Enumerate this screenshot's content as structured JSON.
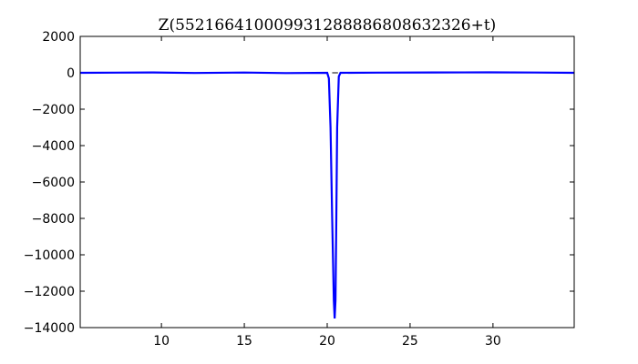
{
  "chart_data": {
    "type": "line",
    "title": "Z(552166410009931288886808632326+t)",
    "xlabel": "",
    "ylabel": "",
    "xlim": [
      5.1,
      34.9
    ],
    "ylim": [
      -14000,
      2000
    ],
    "xticks": [
      10,
      15,
      20,
      25,
      30
    ],
    "xtick_labels": [
      "10",
      "15",
      "20",
      "25",
      "30"
    ],
    "yticks": [
      2000,
      0,
      -2000,
      -4000,
      -6000,
      -8000,
      -10000,
      -12000,
      -14000
    ],
    "ytick_labels": [
      "2000",
      "0",
      "−2000",
      "−4000",
      "−6000",
      "−8000",
      "−10000",
      "−12000",
      "−14000"
    ],
    "grid": false,
    "series": [
      {
        "color": "#0000ff",
        "x": [
          5.1,
          9.5,
          12,
          15,
          17.5,
          20.0,
          20.1,
          20.2,
          20.3,
          20.4,
          20.45,
          20.5,
          20.55,
          20.6,
          20.7,
          20.8,
          23,
          26.5,
          29.8,
          32.5,
          34.9
        ],
        "y": [
          0,
          20,
          -10,
          15,
          -15,
          0,
          -300,
          -3000,
          -8000,
          -12500,
          -13500,
          -12500,
          -8000,
          -3000,
          -200,
          0,
          10,
          20,
          25,
          15,
          0
        ]
      }
    ]
  }
}
